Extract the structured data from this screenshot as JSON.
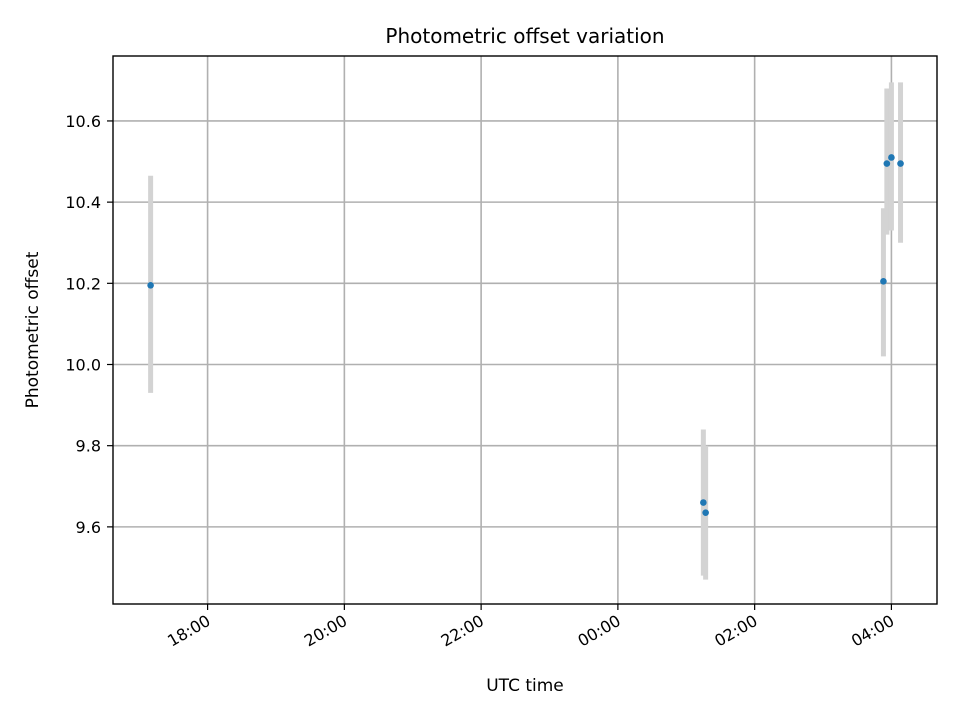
{
  "chart_data": {
    "type": "scatter",
    "title": "Photometric offset variation",
    "xlabel": "UTC time",
    "ylabel": "Photometric offset",
    "x_axis_type": "time",
    "x_range": [
      "2000-01-01T16:37:00",
      "2000-01-02T04:40:00"
    ],
    "ylim": [
      9.41,
      10.76
    ],
    "x_ticks": [
      {
        "value": "2000-01-01T18:00:00",
        "label": "18:00"
      },
      {
        "value": "2000-01-01T20:00:00",
        "label": "20:00"
      },
      {
        "value": "2000-01-01T22:00:00",
        "label": "22:00"
      },
      {
        "value": "2000-01-02T00:00:00",
        "label": "00:00"
      },
      {
        "value": "2000-01-02T02:00:00",
        "label": "02:00"
      },
      {
        "value": "2000-01-02T04:00:00",
        "label": "04:00"
      }
    ],
    "y_ticks": [
      9.6,
      9.8,
      10.0,
      10.2,
      10.4,
      10.6
    ],
    "grid": true,
    "colors": {
      "point": "#1f77b4",
      "error_bar": "#d3d3d3",
      "grid": "#b0b0b0"
    },
    "points": [
      {
        "x": "2000-01-01T17:10:00",
        "y": 10.195,
        "err_low": 9.93,
        "err_high": 10.465
      },
      {
        "x": "2000-01-02T01:15:00",
        "y": 9.66,
        "err_low": 9.48,
        "err_high": 9.84
      },
      {
        "x": "2000-01-02T01:17:00",
        "y": 9.635,
        "err_low": 9.47,
        "err_high": 9.8
      },
      {
        "x": "2000-01-02T03:53:00",
        "y": 10.205,
        "err_low": 10.02,
        "err_high": 10.385
      },
      {
        "x": "2000-01-02T03:56:00",
        "y": 10.495,
        "err_low": 10.32,
        "err_high": 10.68
      },
      {
        "x": "2000-01-02T04:00:00",
        "y": 10.51,
        "err_low": 10.33,
        "err_high": 10.695
      },
      {
        "x": "2000-01-02T04:08:00",
        "y": 10.495,
        "err_low": 10.3,
        "err_high": 10.695
      }
    ]
  }
}
